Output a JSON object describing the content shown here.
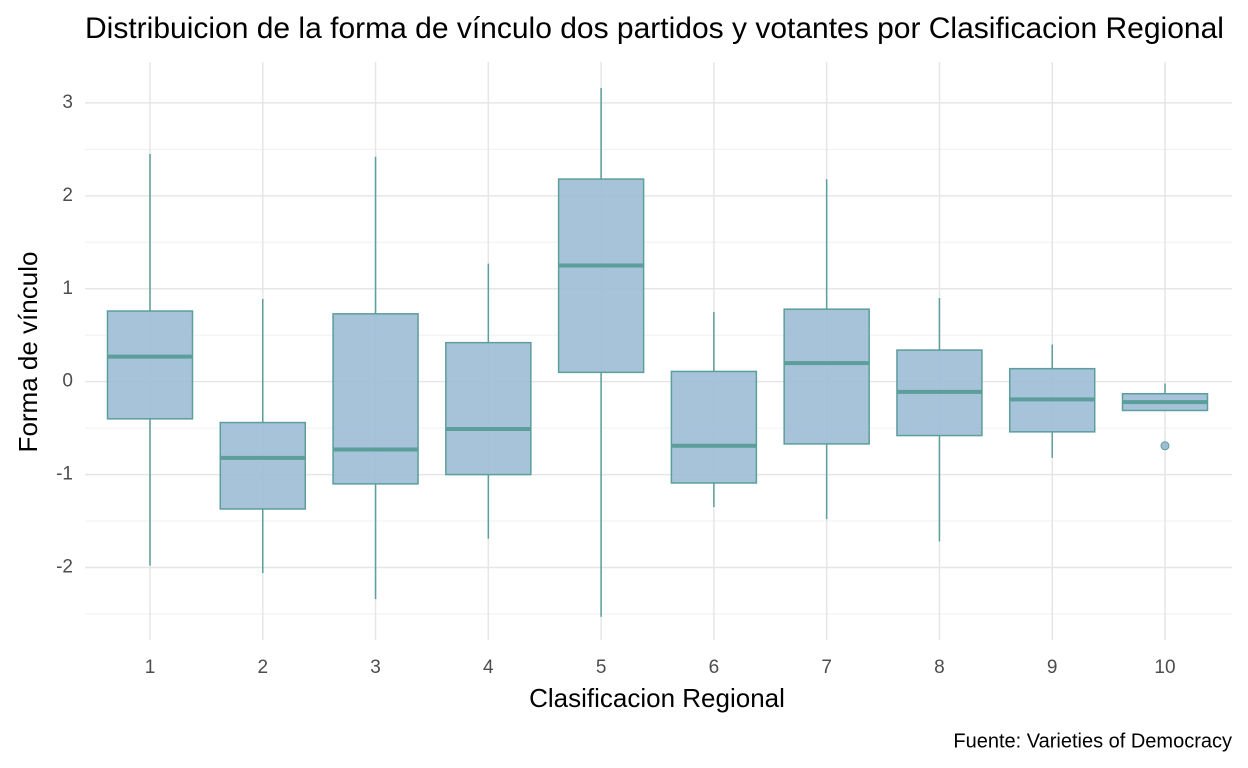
{
  "chart_data": {
    "type": "boxplot",
    "title": "Distribuicion de la forma de vínculo dos partidos y votantes por Clasificacion Regional",
    "x_label": "Clasificacion Regional",
    "y_label": "Forma de vínculo",
    "caption": "Fuente: Varieties of Democracy",
    "categories": [
      "1",
      "2",
      "3",
      "4",
      "5",
      "6",
      "7",
      "8",
      "9",
      "10"
    ],
    "boxes": [
      {
        "low": -1.98,
        "q1": -0.4,
        "median": 0.27,
        "q3": 0.76,
        "high": 2.45
      },
      {
        "low": -2.06,
        "q1": -1.37,
        "median": -0.82,
        "q3": -0.44,
        "high": 0.89
      },
      {
        "low": -2.34,
        "q1": -1.1,
        "median": -0.73,
        "q3": 0.73,
        "high": 2.42
      },
      {
        "low": -1.69,
        "q1": -1.0,
        "median": -0.51,
        "q3": 0.42,
        "high": 1.27
      },
      {
        "low": -2.53,
        "q1": 0.1,
        "median": 1.25,
        "q3": 2.18,
        "high": 3.16
      },
      {
        "low": -1.35,
        "q1": -1.09,
        "median": -0.69,
        "q3": 0.11,
        "high": 0.75
      },
      {
        "low": -1.48,
        "q1": -0.67,
        "median": 0.2,
        "q3": 0.78,
        "high": 2.18
      },
      {
        "low": -1.72,
        "q1": -0.58,
        "median": -0.11,
        "q3": 0.34,
        "high": 0.9
      },
      {
        "low": -0.82,
        "q1": -0.54,
        "median": -0.19,
        "q3": 0.14,
        "high": 0.4
      },
      {
        "low": -0.31,
        "q1": -0.31,
        "median": -0.22,
        "q3": -0.13,
        "high": -0.02
      }
    ],
    "outliers": [
      [],
      [],
      [],
      [],
      [],
      [],
      [],
      [],
      [],
      [
        -0.69
      ]
    ],
    "fill": "#9dbdd6",
    "color": "#5b9e9a",
    "ylim": [
      -2.78,
      3.44
    ],
    "yticks": [
      -2,
      -1,
      0,
      1,
      2,
      3
    ],
    "grid": true
  }
}
